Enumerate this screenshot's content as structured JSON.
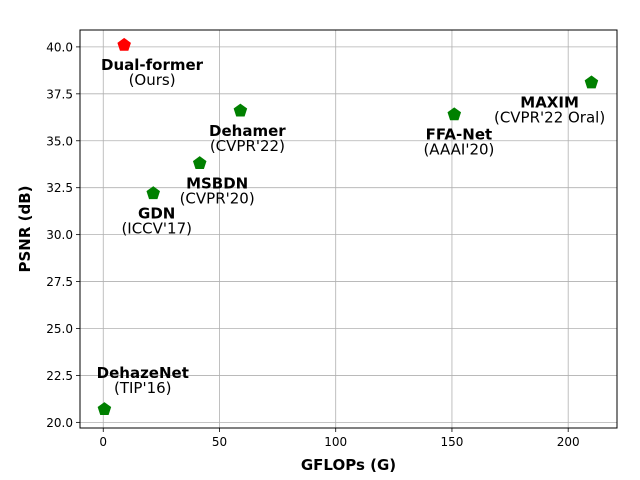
{
  "chart_data": {
    "type": "scatter",
    "title": "",
    "xlabel": "GFLOPs (G)",
    "ylabel": "PSNR (dB)",
    "xlim": [
      -10,
      221
    ],
    "ylim": [
      19.7,
      40.9
    ],
    "xticks": [
      0,
      50,
      100,
      150,
      200
    ],
    "yticks": [
      20.0,
      22.5,
      25.0,
      27.5,
      30.0,
      32.5,
      35.0,
      37.5,
      40.0
    ],
    "grid": true,
    "marker": "pentagon",
    "points": [
      {
        "name": "Dual-former",
        "venue": "(Ours)",
        "x": 9,
        "y": 40.1,
        "color": "#ff0000",
        "label_x": 21,
        "label_y": 38.6
      },
      {
        "name": "Dehamer",
        "venue": "(CVPR'22)",
        "x": 59,
        "y": 36.6,
        "color": "#008000",
        "label_x": 62,
        "label_y": 35.1
      },
      {
        "name": "MSBDN",
        "venue": "(CVPR'20)",
        "x": 41.5,
        "y": 33.8,
        "color": "#008000",
        "label_x": 49,
        "label_y": 32.3
      },
      {
        "name": "GDN",
        "venue": "(ICCV'17)",
        "x": 21.5,
        "y": 32.2,
        "color": "#008000",
        "label_x": 23,
        "label_y": 30.7
      },
      {
        "name": "DehazeNet",
        "venue": "(TIP'16)",
        "x": 0.5,
        "y": 20.7,
        "color": "#008000",
        "label_x": 17,
        "label_y": 22.2
      },
      {
        "name": "FFA-Net",
        "venue": "(AAAI'20)",
        "x": 151,
        "y": 36.4,
        "color": "#008000",
        "label_x": 153,
        "label_y": 34.9
      },
      {
        "name": "MAXIM",
        "venue": "(CVPR'22 Oral)",
        "x": 210,
        "y": 38.1,
        "color": "#008000",
        "label_x": 192,
        "label_y": 36.6
      }
    ]
  }
}
